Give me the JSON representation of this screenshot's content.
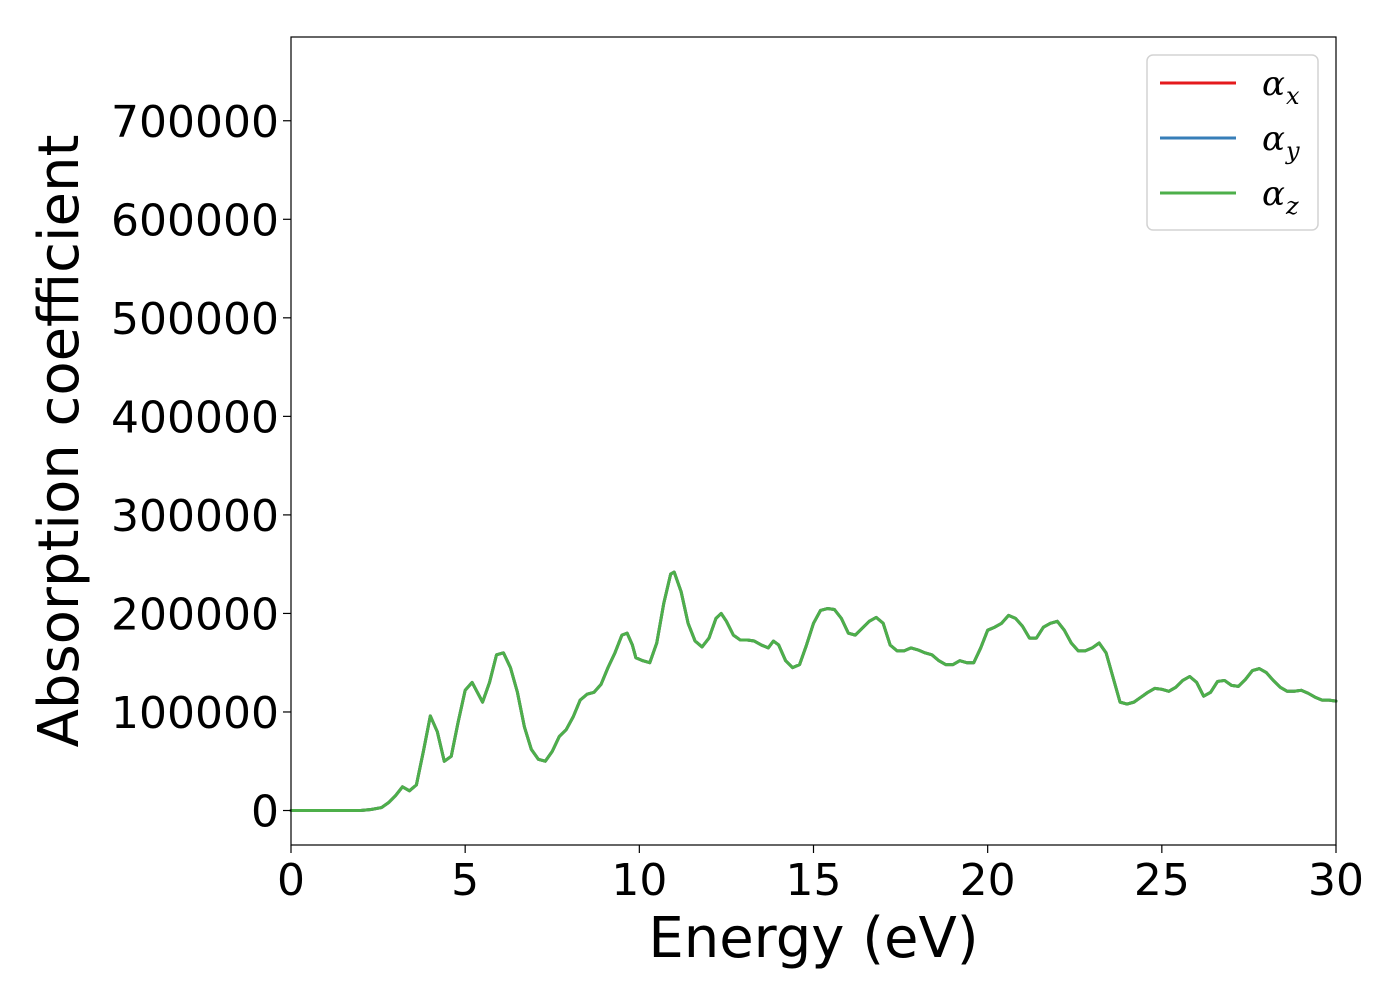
{
  "chart_data": {
    "type": "line",
    "title": "",
    "xlabel": "Energy (eV)",
    "ylabel": "Absorption coefficient",
    "xlim": [
      0,
      30
    ],
    "ylim": [
      -35000,
      785000
    ],
    "xticks": [
      0,
      5,
      10,
      15,
      20,
      25,
      30
    ],
    "yticks": [
      0,
      100000,
      200000,
      300000,
      400000,
      500000,
      600000,
      700000
    ],
    "xtick_labels": [
      "0",
      "5",
      "10",
      "15",
      "20",
      "25",
      "30"
    ],
    "ytick_labels": [
      "0",
      "100000",
      "200000",
      "300000",
      "400000",
      "500000",
      "600000",
      "700000"
    ],
    "grid": false,
    "legend_position": "top-right",
    "legend": [
      {
        "symbol": "α",
        "subscript": "x",
        "color": "#e41a1c"
      },
      {
        "symbol": "α",
        "subscript": "y",
        "color": "#377eb8"
      },
      {
        "symbol": "α",
        "subscript": "z",
        "color": "#4daf4a"
      }
    ],
    "x": [
      0,
      0.5,
      1.0,
      1.5,
      2.0,
      2.3,
      2.6,
      2.8,
      3.0,
      3.2,
      3.4,
      3.6,
      3.8,
      4.0,
      4.2,
      4.4,
      4.6,
      4.8,
      5.0,
      5.2,
      5.35,
      5.5,
      5.7,
      5.9,
      6.1,
      6.3,
      6.5,
      6.7,
      6.9,
      7.1,
      7.3,
      7.5,
      7.7,
      7.9,
      8.1,
      8.3,
      8.5,
      8.7,
      8.9,
      9.1,
      9.3,
      9.5,
      9.65,
      9.8,
      9.9,
      10.1,
      10.3,
      10.5,
      10.7,
      10.9,
      11.0,
      11.2,
      11.4,
      11.6,
      11.8,
      12.0,
      12.2,
      12.35,
      12.5,
      12.7,
      12.9,
      13.1,
      13.3,
      13.5,
      13.7,
      13.85,
      14.0,
      14.2,
      14.4,
      14.6,
      14.8,
      15.0,
      15.2,
      15.4,
      15.6,
      15.8,
      16.0,
      16.2,
      16.4,
      16.6,
      16.8,
      17.0,
      17.2,
      17.4,
      17.6,
      17.8,
      18.0,
      18.2,
      18.4,
      18.6,
      18.8,
      19.0,
      19.2,
      19.4,
      19.6,
      19.8,
      20.0,
      20.2,
      20.4,
      20.6,
      20.8,
      21.0,
      21.2,
      21.4,
      21.6,
      21.8,
      22.0,
      22.2,
      22.4,
      22.6,
      22.8,
      23.0,
      23.2,
      23.4,
      23.6,
      23.8,
      24.0,
      24.2,
      24.4,
      24.6,
      24.8,
      25.0,
      25.2,
      25.4,
      25.6,
      25.8,
      26.0,
      26.2,
      26.4,
      26.6,
      26.8,
      27.0,
      27.2,
      27.4,
      27.6,
      27.8,
      28.0,
      28.2,
      28.4,
      28.6,
      28.8,
      29.0,
      29.2,
      29.4,
      29.6,
      29.8,
      30.0
    ],
    "series": [
      {
        "name": "α_x",
        "color": "#e41a1c",
        "values": [
          0,
          0,
          0,
          0,
          0,
          1000,
          3000,
          8000,
          15000,
          24000,
          20000,
          26000,
          60000,
          96000,
          80000,
          50000,
          55000,
          90000,
          122000,
          130000,
          120000,
          110000,
          130000,
          158000,
          160000,
          145000,
          120000,
          85000,
          62000,
          52000,
          50000,
          60000,
          75000,
          82000,
          95000,
          112000,
          118000,
          120000,
          128000,
          145000,
          160000,
          178000,
          180000,
          168000,
          155000,
          152000,
          150000,
          170000,
          210000,
          240000,
          242000,
          222000,
          190000,
          172000,
          166000,
          175000,
          195000,
          200000,
          192000,
          178000,
          173000,
          173000,
          172000,
          168000,
          165000,
          172000,
          168000,
          152000,
          145000,
          148000,
          168000,
          190000,
          203000,
          205000,
          204000,
          195000,
          180000,
          178000,
          185000,
          192000,
          196000,
          190000,
          168000,
          162000,
          162000,
          165000,
          163000,
          160000,
          158000,
          152000,
          148000,
          148000,
          152000,
          150000,
          150000,
          165000,
          183000,
          186000,
          190000,
          198000,
          195000,
          187000,
          175000,
          175000,
          186000,
          190000,
          192000,
          183000,
          170000,
          162000,
          162000,
          165000,
          170000,
          160000,
          135000,
          110000,
          108000,
          110000,
          115000,
          120000,
          124000,
          123000,
          121000,
          125000,
          132000,
          136000,
          130000,
          116000,
          120000,
          131000,
          132000,
          127000,
          126000,
          133000,
          142000,
          144000,
          140000,
          132000,
          125000,
          121000,
          121000,
          122000,
          119000,
          115000,
          112000,
          112000,
          111000
        ]
      },
      {
        "name": "α_y",
        "color": "#377eb8",
        "values": [
          0,
          0,
          0,
          0,
          0,
          1000,
          3000,
          8000,
          15000,
          24000,
          20000,
          26000,
          60000,
          96000,
          80000,
          50000,
          55000,
          90000,
          122000,
          130000,
          120000,
          110000,
          130000,
          158000,
          160000,
          145000,
          120000,
          85000,
          62000,
          52000,
          50000,
          60000,
          75000,
          82000,
          95000,
          112000,
          118000,
          120000,
          128000,
          145000,
          160000,
          178000,
          180000,
          168000,
          155000,
          152000,
          150000,
          170000,
          210000,
          240000,
          242000,
          222000,
          190000,
          172000,
          166000,
          175000,
          195000,
          200000,
          192000,
          178000,
          173000,
          173000,
          172000,
          168000,
          165000,
          172000,
          168000,
          152000,
          145000,
          148000,
          168000,
          190000,
          203000,
          205000,
          204000,
          195000,
          180000,
          178000,
          185000,
          192000,
          196000,
          190000,
          168000,
          162000,
          162000,
          165000,
          163000,
          160000,
          158000,
          152000,
          148000,
          148000,
          152000,
          150000,
          150000,
          165000,
          183000,
          186000,
          190000,
          198000,
          195000,
          187000,
          175000,
          175000,
          186000,
          190000,
          192000,
          183000,
          170000,
          162000,
          162000,
          165000,
          170000,
          160000,
          135000,
          110000,
          108000,
          110000,
          115000,
          120000,
          124000,
          123000,
          121000,
          125000,
          132000,
          136000,
          130000,
          116000,
          120000,
          131000,
          132000,
          127000,
          126000,
          133000,
          142000,
          144000,
          140000,
          132000,
          125000,
          121000,
          121000,
          122000,
          119000,
          115000,
          112000,
          112000,
          111000
        ]
      },
      {
        "name": "α_z",
        "color": "#4daf4a",
        "values": [
          0,
          0,
          0,
          0,
          0,
          1000,
          3000,
          8000,
          15000,
          24000,
          20000,
          26000,
          60000,
          96000,
          80000,
          50000,
          55000,
          90000,
          122000,
          130000,
          120000,
          110000,
          130000,
          158000,
          160000,
          145000,
          120000,
          85000,
          62000,
          52000,
          50000,
          60000,
          75000,
          82000,
          95000,
          112000,
          118000,
          120000,
          128000,
          145000,
          160000,
          178000,
          180000,
          168000,
          155000,
          152000,
          150000,
          170000,
          210000,
          240000,
          242000,
          222000,
          190000,
          172000,
          166000,
          175000,
          195000,
          200000,
          192000,
          178000,
          173000,
          173000,
          172000,
          168000,
          165000,
          172000,
          168000,
          152000,
          145000,
          148000,
          168000,
          190000,
          203000,
          205000,
          204000,
          195000,
          180000,
          178000,
          185000,
          192000,
          196000,
          190000,
          168000,
          162000,
          162000,
          165000,
          163000,
          160000,
          158000,
          152000,
          148000,
          148000,
          152000,
          150000,
          150000,
          165000,
          183000,
          186000,
          190000,
          198000,
          195000,
          187000,
          175000,
          175000,
          186000,
          190000,
          192000,
          183000,
          170000,
          162000,
          162000,
          165000,
          170000,
          160000,
          135000,
          110000,
          108000,
          110000,
          115000,
          120000,
          124000,
          123000,
          121000,
          125000,
          132000,
          136000,
          130000,
          116000,
          120000,
          131000,
          132000,
          127000,
          126000,
          133000,
          142000,
          144000,
          140000,
          132000,
          125000,
          121000,
          121000,
          122000,
          119000,
          115000,
          112000,
          112000,
          111000
        ]
      }
    ]
  }
}
